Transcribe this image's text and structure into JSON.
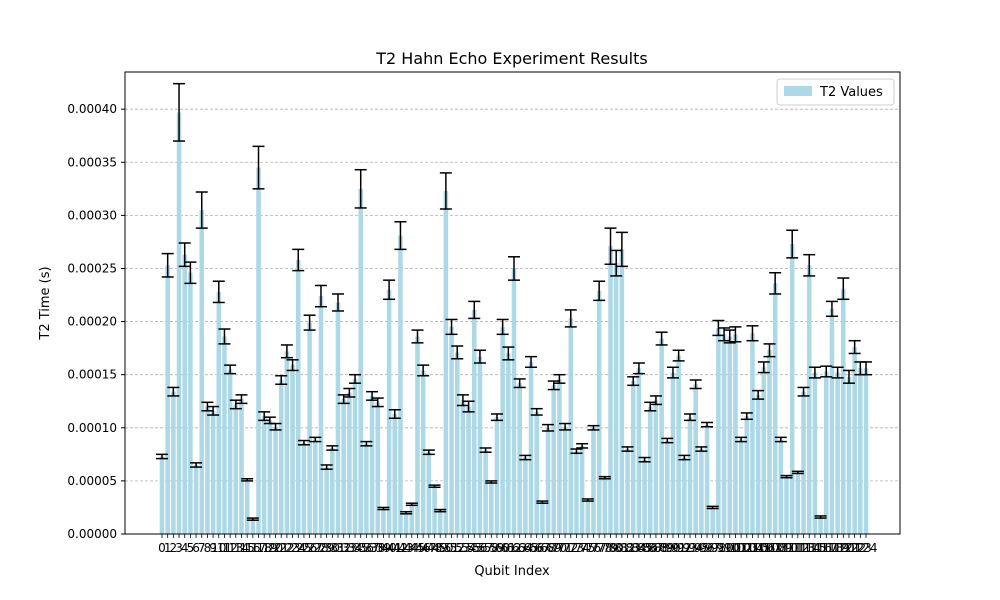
{
  "chart_data": {
    "type": "bar",
    "title": "T2 Hahn Echo Experiment Results",
    "xlabel": "Qubit Index",
    "ylabel": "T2 Time (s)",
    "ylim": [
      0,
      0.000435
    ],
    "yticks": [
      "0.00000",
      "0.00005",
      "0.00010",
      "0.00015",
      "0.00020",
      "0.00025",
      "0.00030",
      "0.00035",
      "0.00040"
    ],
    "grid": "y-dashed",
    "legend_position": "top-right",
    "colors": {
      "bar": "#add8e6",
      "error": "#000000",
      "grid": "#b0b0b0"
    },
    "series": [
      {
        "name": "T2 Values",
        "values": [
          7.3e-05,
          0.000253,
          0.000134,
          0.000397,
          0.000263,
          0.000246,
          6.5e-05,
          0.000305,
          0.00012,
          0.000116,
          0.000228,
          0.000186,
          0.000155,
          0.000122,
          0.000127,
          5.1e-05,
          1.4e-05,
          0.000345,
          0.000111,
          0.000107,
          0.000101,
          0.000145,
          0.000172,
          0.000159,
          0.000258,
          8.6e-05,
          0.000199,
          8.9e-05,
          0.000224,
          6.3e-05,
          8.1e-05,
          0.000218,
          0.000127,
          0.000133,
          0.000146,
          0.000325,
          8.5e-05,
          0.00013,
          0.000124,
          2.4e-05,
          0.00023,
          0.000113,
          0.000281,
          2e-05,
          2.8e-05,
          0.000186,
          0.000154,
          7.7e-05,
          4.5e-05,
          2.2e-05,
          0.000323,
          0.000195,
          0.000171,
          0.000126,
          0.00012,
          0.000211,
          0.000167,
          7.9e-05,
          4.9e-05,
          0.00011,
          0.000195,
          0.00017,
          0.00025,
          0.000142,
          7.2e-05,
          0.000162,
          0.000115,
          3e-05,
          0.0001,
          0.00014,
          0.000146,
          0.000101,
          0.000203,
          7.8e-05,
          8.3e-05,
          3.2e-05,
          0.0001,
          0.000229,
          5.3e-05,
          0.000271,
          0.000255,
          0.000268,
          8e-05,
          0.000144,
          0.000156,
          7e-05,
          0.00012,
          0.000126,
          0.000184,
          8.8e-05,
          0.000152,
          0.000168,
          7.2e-05,
          0.00011,
          0.000141,
          8e-05,
          0.000103,
          2.5e-05,
          0.000194,
          0.000188,
          0.000186,
          0.000188,
          8.9e-05,
          0.000111,
          0.000189,
          0.000131,
          0.000157,
          0.000173,
          0.000236,
          8.9e-05,
          5.4e-05,
          0.000273,
          5.8e-05,
          0.000134,
          0.000253,
          0.000152,
          1.6e-05,
          0.000153,
          0.000212,
          0.000152,
          0.000231,
          0.000148,
          0.000176,
          0.000156,
          0.000156
        ],
        "errors": [
          2e-06,
          1.1e-05,
          4e-06,
          2.7e-05,
          1.1e-05,
          1e-05,
          2e-06,
          1.7e-05,
          4e-06,
          4e-06,
          1e-05,
          7e-06,
          4e-06,
          4e-06,
          4e-06,
          1e-06,
          1e-06,
          2e-05,
          4e-06,
          3e-06,
          3e-06,
          4e-06,
          6e-06,
          5e-06,
          1e-05,
          2e-06,
          7e-06,
          2e-06,
          1e-05,
          2e-06,
          2e-06,
          8e-06,
          4e-06,
          4e-06,
          4e-06,
          1.8e-05,
          2e-06,
          4e-06,
          4e-06,
          1e-06,
          9e-06,
          4e-06,
          1.3e-05,
          1e-06,
          1e-06,
          6e-06,
          5e-06,
          2e-06,
          1e-06,
          1e-06,
          1.7e-05,
          7e-06,
          6e-06,
          5e-06,
          5e-06,
          8e-06,
          6e-06,
          2e-06,
          1e-06,
          3e-06,
          7e-06,
          6e-06,
          1.1e-05,
          4e-06,
          2e-06,
          5e-06,
          3e-06,
          1e-06,
          3e-06,
          4e-06,
          4e-06,
          3e-06,
          8e-06,
          2e-06,
          2e-06,
          1e-06,
          2e-06,
          9e-06,
          1e-06,
          1.7e-05,
          1.2e-05,
          1.6e-05,
          2e-06,
          4e-06,
          5e-06,
          2e-06,
          4e-06,
          4e-06,
          6e-06,
          2e-06,
          5e-06,
          5e-06,
          2e-06,
          3e-06,
          4e-06,
          2e-06,
          2e-06,
          1e-06,
          7e-06,
          6e-06,
          6e-06,
          7e-06,
          2e-06,
          3e-06,
          7e-06,
          4e-06,
          5e-06,
          6e-06,
          1e-05,
          2e-06,
          1e-06,
          1.3e-05,
          1e-06,
          4e-06,
          1e-05,
          5e-06,
          1e-06,
          5e-06,
          7e-06,
          5e-06,
          1e-05,
          6e-06,
          6e-06,
          6e-06,
          6e-06
        ]
      }
    ]
  }
}
